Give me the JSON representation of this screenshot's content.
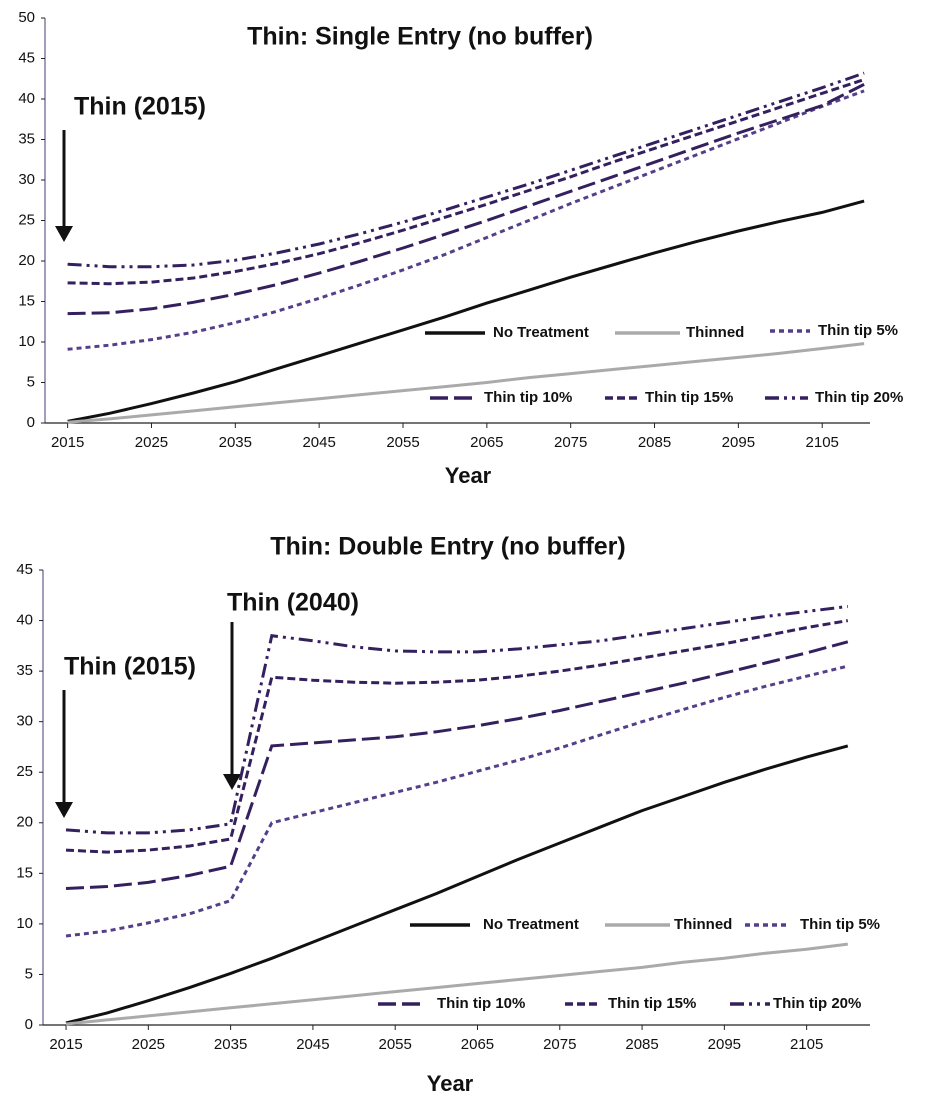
{
  "chart_data": [
    {
      "type": "line",
      "title": "Thin: Single Entry (no buffer)",
      "x_label": "Year",
      "annotations": [
        "Thin (2015)"
      ],
      "x": [
        2015,
        2020,
        2025,
        2030,
        2035,
        2040,
        2045,
        2050,
        2055,
        2060,
        2065,
        2070,
        2075,
        2080,
        2085,
        2090,
        2095,
        2100,
        2105,
        2110
      ],
      "xlim": [
        2012.3,
        2110.7
      ],
      "xticks": [
        2015,
        2025,
        2035,
        2045,
        2055,
        2065,
        2075,
        2085,
        2095,
        2105
      ],
      "ylim": [
        0,
        50
      ],
      "yticks": [
        0,
        5,
        10,
        15,
        20,
        25,
        30,
        35,
        40,
        45,
        50
      ],
      "series": [
        {
          "name": "No Treatment",
          "color": "#111111",
          "dash": "solid",
          "values": [
            0.2,
            1.2,
            2.4,
            3.7,
            5.1,
            6.7,
            8.3,
            9.9,
            11.5,
            13.1,
            14.8,
            16.4,
            18.0,
            19.5,
            21.0,
            22.4,
            23.7,
            24.9,
            26.0,
            27.4
          ]
        },
        {
          "name": "Thinned",
          "color": "#aaaaaa",
          "dash": "solid",
          "values": [
            0.1,
            0.5,
            1.0,
            1.5,
            2.0,
            2.5,
            3.0,
            3.5,
            4.0,
            4.5,
            5.0,
            5.6,
            6.1,
            6.6,
            7.1,
            7.6,
            8.1,
            8.6,
            9.2,
            9.8
          ]
        },
        {
          "name": "Thin tip 5%",
          "color": "#54408a",
          "dash": "short-dash",
          "values": [
            9.1,
            9.6,
            10.3,
            11.2,
            12.4,
            13.8,
            15.4,
            17.1,
            18.9,
            20.8,
            22.9,
            25.0,
            27.1,
            29.1,
            31.1,
            33.1,
            35.1,
            37.1,
            39.1,
            41.0
          ]
        },
        {
          "name": "Thin tip 10%",
          "color": "#35205f",
          "dash": "long-dash",
          "values": [
            13.5,
            13.6,
            14.1,
            14.9,
            15.9,
            17.1,
            18.5,
            20.0,
            21.6,
            23.3,
            25.0,
            26.8,
            28.6,
            30.4,
            32.2,
            34.0,
            35.8,
            37.5,
            39.2,
            41.8
          ]
        },
        {
          "name": "Thin tip 15%",
          "color": "#35205f",
          "dash": "dash",
          "values": [
            17.3,
            17.2,
            17.4,
            17.9,
            18.7,
            19.7,
            20.9,
            22.3,
            23.8,
            25.4,
            27.0,
            28.7,
            30.4,
            32.2,
            33.9,
            35.6,
            37.3,
            39.0,
            40.7,
            42.4
          ]
        },
        {
          "name": "Thin tip 20%",
          "color": "#35205f",
          "dash": "dash-dot",
          "values": [
            19.6,
            19.3,
            19.3,
            19.5,
            20.1,
            21.0,
            22.1,
            23.4,
            24.8,
            26.3,
            27.9,
            29.5,
            31.2,
            32.9,
            34.6,
            36.3,
            38.0,
            39.7,
            41.4,
            43.2
          ]
        }
      ]
    },
    {
      "type": "line",
      "title": "Thin: Double Entry (no buffer)",
      "x_label": "Year",
      "annotations": [
        "Thin (2015)",
        "Thin (2040)"
      ],
      "x": [
        2015,
        2020,
        2025,
        2030,
        2035,
        2040,
        2045,
        2050,
        2055,
        2060,
        2065,
        2070,
        2075,
        2080,
        2085,
        2090,
        2095,
        2100,
        2105,
        2110
      ],
      "xlim": [
        2012.2,
        2112.7
      ],
      "xticks": [
        2015,
        2025,
        2035,
        2045,
        2055,
        2065,
        2075,
        2085,
        2095,
        2105
      ],
      "ylim": [
        0,
        45
      ],
      "yticks": [
        0,
        5,
        10,
        15,
        20,
        25,
        30,
        35,
        40,
        45
      ],
      "series": [
        {
          "name": "No Treatment",
          "color": "#111111",
          "dash": "solid",
          "values": [
            0.2,
            1.2,
            2.4,
            3.7,
            5.1,
            6.6,
            8.2,
            9.8,
            11.4,
            13.0,
            14.7,
            16.4,
            18.0,
            19.6,
            21.2,
            22.6,
            24.0,
            25.3,
            26.5,
            27.6
          ]
        },
        {
          "name": "Thinned",
          "color": "#aaaaaa",
          "dash": "solid",
          "values": [
            0.1,
            0.5,
            0.9,
            1.3,
            1.7,
            2.1,
            2.5,
            2.9,
            3.3,
            3.7,
            4.1,
            4.5,
            4.9,
            5.3,
            5.7,
            6.2,
            6.6,
            7.1,
            7.5,
            8.0
          ]
        },
        {
          "name": "Thin tip 5%",
          "color": "#54408a",
          "dash": "short-dash",
          "values": [
            8.8,
            9.3,
            10.1,
            11.0,
            12.3,
            20.0,
            21.0,
            22.0,
            23.0,
            24.0,
            25.1,
            26.2,
            27.4,
            28.7,
            30.0,
            31.2,
            32.4,
            33.5,
            34.5,
            35.5
          ]
        },
        {
          "name": "Thin tip 10%",
          "color": "#35205f",
          "dash": "long-dash",
          "values": [
            13.5,
            13.7,
            14.1,
            14.8,
            15.7,
            27.6,
            27.9,
            28.2,
            28.5,
            29.0,
            29.6,
            30.3,
            31.1,
            32.0,
            32.9,
            33.8,
            34.8,
            35.8,
            36.8,
            37.9
          ]
        },
        {
          "name": "Thin tip 15%",
          "color": "#35205f",
          "dash": "dash",
          "values": [
            17.3,
            17.1,
            17.3,
            17.7,
            18.4,
            34.4,
            34.1,
            33.9,
            33.8,
            33.9,
            34.1,
            34.5,
            35.0,
            35.6,
            36.3,
            37.0,
            37.7,
            38.5,
            39.3,
            40.0
          ]
        },
        {
          "name": "Thin tip 20%",
          "color": "#35205f",
          "dash": "dash-dot",
          "values": [
            19.3,
            19.0,
            19.0,
            19.3,
            19.9,
            38.5,
            38.0,
            37.4,
            37.0,
            36.9,
            36.9,
            37.2,
            37.6,
            38.0,
            38.6,
            39.2,
            39.8,
            40.4,
            40.9,
            41.4
          ]
        }
      ]
    }
  ]
}
